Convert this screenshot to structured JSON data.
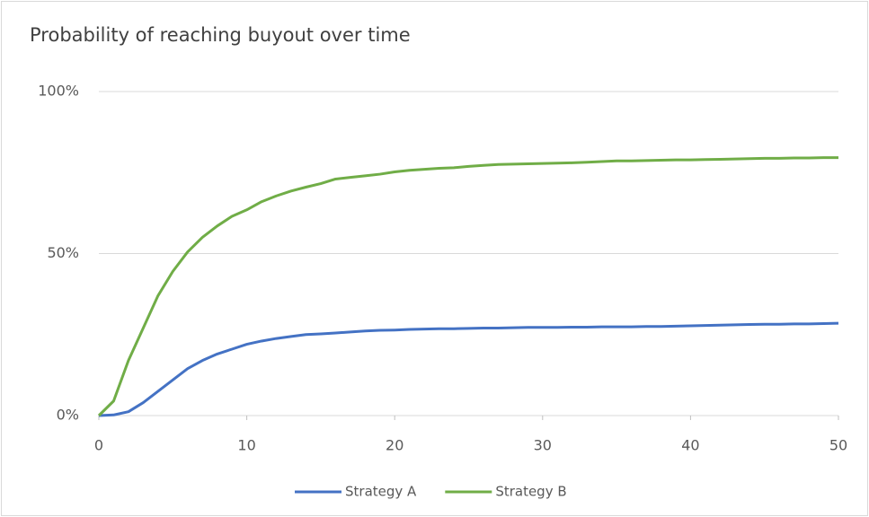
{
  "chart_data": {
    "type": "line",
    "title": "Probability of reaching buyout over time",
    "x": [
      0,
      1,
      2,
      3,
      4,
      5,
      6,
      7,
      8,
      9,
      10,
      11,
      12,
      13,
      14,
      15,
      16,
      17,
      18,
      19,
      20,
      21,
      22,
      23,
      24,
      25,
      26,
      27,
      28,
      29,
      30,
      31,
      32,
      33,
      34,
      35,
      36,
      37,
      38,
      39,
      40,
      41,
      42,
      43,
      44,
      45,
      46,
      47,
      48,
      49,
      50
    ],
    "series": [
      {
        "name": "Strategy A",
        "color": "#4472c4",
        "values": [
          0,
          0.2,
          1.2,
          4,
          7.5,
          11,
          14.5,
          17,
          19,
          20.5,
          22,
          23,
          23.8,
          24.4,
          25,
          25.2,
          25.5,
          25.8,
          26.1,
          26.3,
          26.4,
          26.6,
          26.7,
          26.8,
          26.8,
          26.9,
          27,
          27,
          27.1,
          27.2,
          27.2,
          27.2,
          27.3,
          27.3,
          27.4,
          27.4,
          27.4,
          27.5,
          27.5,
          27.6,
          27.7,
          27.8,
          27.9,
          28,
          28.1,
          28.2,
          28.2,
          28.3,
          28.3,
          28.4,
          28.5
        ]
      },
      {
        "name": "Strategy B",
        "color": "#70ad47",
        "values": [
          0,
          4.5,
          17,
          27,
          37,
          44.5,
          50.5,
          55,
          58.5,
          61.5,
          63.5,
          66,
          67.8,
          69.3,
          70.5,
          71.6,
          73,
          73.5,
          74,
          74.5,
          75.2,
          75.7,
          76,
          76.3,
          76.5,
          76.9,
          77.2,
          77.5,
          77.6,
          77.7,
          77.8,
          77.9,
          78,
          78.2,
          78.4,
          78.6,
          78.6,
          78.7,
          78.8,
          78.9,
          78.9,
          79,
          79.1,
          79.2,
          79.3,
          79.4,
          79.4,
          79.5,
          79.5,
          79.6,
          79.6
        ]
      }
    ],
    "xlim": [
      0,
      50
    ],
    "xticks": [
      0,
      10,
      20,
      30,
      40,
      50
    ],
    "ylim": [
      0,
      100
    ],
    "yticks": [
      {
        "value": 0,
        "label": "0%"
      },
      {
        "value": 50,
        "label": "50%"
      },
      {
        "value": 100,
        "label": "100%"
      }
    ],
    "grid": true,
    "legend": "bottom"
  }
}
